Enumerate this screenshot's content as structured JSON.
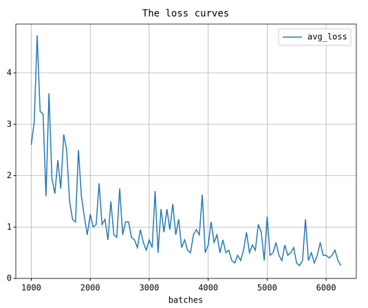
{
  "chart_data": {
    "type": "line",
    "title": "The loss curves",
    "xlabel": "batches",
    "x": [
      1000,
      1050,
      1100,
      1150,
      1200,
      1250,
      1300,
      1350,
      1400,
      1450,
      1500,
      1550,
      1600,
      1650,
      1700,
      1750,
      1800,
      1850,
      1900,
      1950,
      2000,
      2050,
      2100,
      2150,
      2200,
      2250,
      2300,
      2350,
      2400,
      2450,
      2500,
      2550,
      2600,
      2650,
      2700,
      2750,
      2800,
      2850,
      2900,
      2950,
      3000,
      3050,
      3100,
      3150,
      3200,
      3250,
      3300,
      3350,
      3400,
      3450,
      3500,
      3550,
      3600,
      3650,
      3700,
      3750,
      3800,
      3850,
      3900,
      3950,
      4000,
      4050,
      4100,
      4150,
      4200,
      4250,
      4300,
      4350,
      4400,
      4450,
      4500,
      4550,
      4600,
      4650,
      4700,
      4750,
      4800,
      4850,
      4900,
      4950,
      5000,
      5050,
      5100,
      5150,
      5200,
      5250,
      5300,
      5350,
      5400,
      5450,
      5500,
      5550,
      5600,
      5650,
      5700,
      5750,
      5800,
      5850,
      5900,
      5950,
      6000,
      6050,
      6100,
      6150,
      6200,
      6250
    ],
    "series": [
      {
        "name": "avg_loss",
        "color": "#1f77b4",
        "values": [
          2.6,
          3.05,
          4.73,
          3.25,
          3.2,
          1.6,
          3.6,
          1.95,
          1.65,
          2.3,
          1.75,
          2.8,
          2.5,
          1.5,
          1.15,
          1.1,
          2.5,
          1.6,
          1.2,
          0.85,
          1.25,
          1.0,
          1.05,
          1.85,
          1.05,
          1.15,
          0.75,
          1.5,
          0.85,
          0.8,
          1.75,
          0.85,
          1.1,
          1.1,
          0.8,
          0.75,
          0.6,
          0.95,
          0.7,
          0.55,
          0.75,
          0.6,
          1.7,
          0.5,
          1.35,
          0.9,
          1.35,
          0.95,
          1.45,
          0.85,
          1.15,
          0.6,
          0.75,
          0.55,
          0.5,
          0.85,
          0.95,
          0.85,
          1.63,
          0.5,
          0.65,
          1.1,
          0.7,
          0.85,
          0.5,
          0.75,
          0.5,
          0.55,
          0.35,
          0.3,
          0.45,
          0.35,
          0.55,
          0.9,
          0.5,
          0.65,
          0.55,
          1.05,
          0.9,
          0.35,
          1.2,
          0.45,
          0.5,
          0.7,
          0.45,
          0.35,
          0.65,
          0.45,
          0.5,
          0.6,
          0.3,
          0.25,
          0.35,
          1.15,
          0.35,
          0.5,
          0.3,
          0.45,
          0.7,
          0.45,
          0.45,
          0.4,
          0.45,
          0.55,
          0.35,
          0.25
        ]
      }
    ],
    "xlim": [
      738,
      6512
    ],
    "xticks": [
      1000,
      2000,
      3000,
      4000,
      5000,
      6000
    ],
    "ylim": [
      0,
      4.95
    ],
    "yticks": [
      0,
      1,
      2,
      3,
      4
    ],
    "grid": true,
    "legend": "upper right"
  }
}
